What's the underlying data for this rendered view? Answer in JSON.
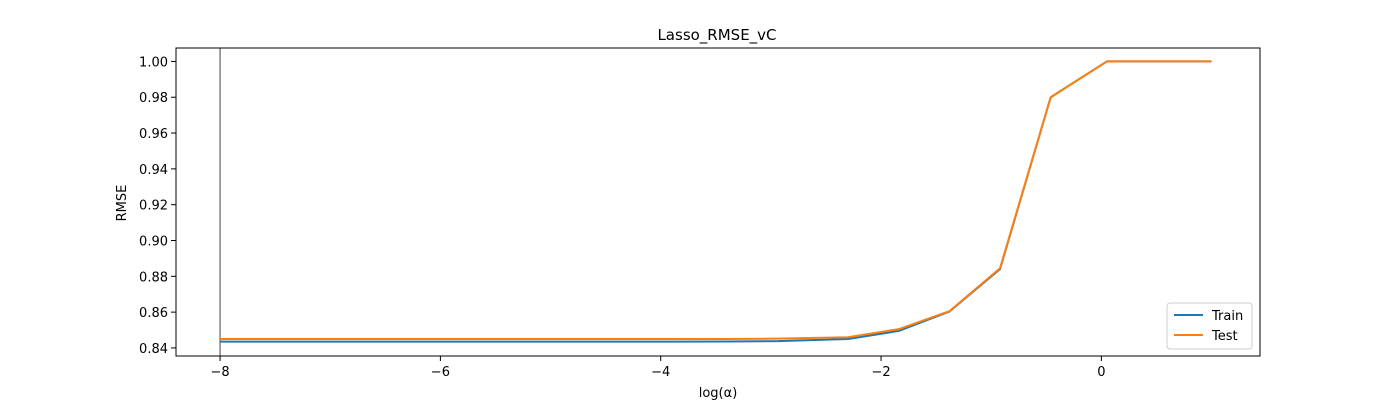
{
  "chart_data": {
    "type": "line",
    "title": "Lasso_RMSE_vC",
    "xlabel": "log(α)",
    "ylabel": "RMSE",
    "xlim": [
      -8.4,
      1.44
    ],
    "ylim": [
      0.8355,
      1.0075
    ],
    "xticks": [
      -8,
      -6,
      -4,
      -2,
      0
    ],
    "xtick_labels": [
      "−8",
      "−6",
      "−4",
      "−2",
      "0"
    ],
    "yticks": [
      0.84,
      0.86,
      0.88,
      0.9,
      0.92,
      0.94,
      0.96,
      0.98,
      1.0
    ],
    "ytick_labels": [
      "0.84",
      "0.86",
      "0.88",
      "0.90",
      "0.92",
      "0.94",
      "0.96",
      "0.98",
      "1.00"
    ],
    "grid": false,
    "legend_position": "bottom-right",
    "vline": {
      "x": -8,
      "color": "#808080"
    },
    "x": [
      -8.0,
      -7.54,
      -7.08,
      -6.62,
      -6.16,
      -5.7,
      -5.24,
      -4.78,
      -4.32,
      -3.86,
      -3.4,
      -2.94,
      -2.3,
      -1.84,
      -1.38,
      -0.92,
      -0.46,
      0.05,
      1.0
    ],
    "series": [
      {
        "name": "Train",
        "color": "#1f77b4",
        "values": [
          0.8435,
          0.8435,
          0.8435,
          0.8435,
          0.8435,
          0.8435,
          0.8435,
          0.8435,
          0.8435,
          0.8435,
          0.8436,
          0.8438,
          0.845,
          0.8495,
          0.8603,
          0.884,
          0.98,
          1.0,
          1.0
        ]
      },
      {
        "name": "Test",
        "color": "#ff7f0e",
        "values": [
          0.845,
          0.845,
          0.845,
          0.845,
          0.845,
          0.845,
          0.845,
          0.845,
          0.845,
          0.845,
          0.845,
          0.8452,
          0.846,
          0.8505,
          0.8605,
          0.8845,
          0.98,
          1.0,
          1.0
        ]
      }
    ]
  }
}
